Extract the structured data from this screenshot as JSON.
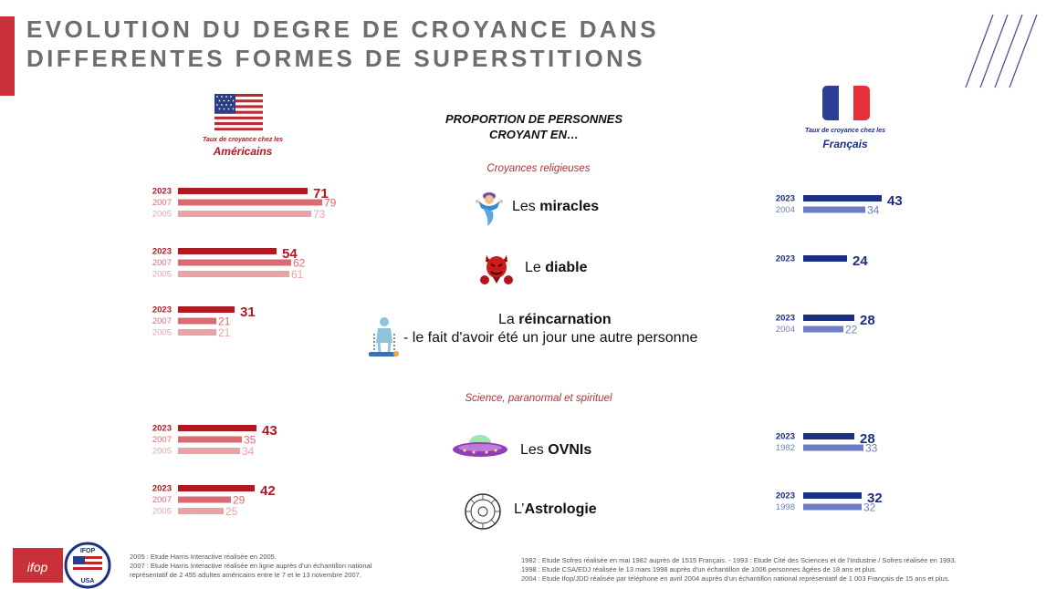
{
  "title_line1": "EVOLUTION DU DEGRE DE CROYANCE DANS",
  "title_line2": "DIFFERENTES FORMES DE SUPERSTITIONS",
  "us_caption_small": "Taux de croyance chez les",
  "us_caption_big": "Américains",
  "fr_caption_small": "Taux de croyance chez les",
  "fr_caption_big": "Français",
  "center_title_line1": "PROPORTION DE PERSONNES",
  "center_title_line2": "CROYANT EN…",
  "sections": {
    "religious": "Croyances religieuses",
    "science": "Science, paranormal et spirituel"
  },
  "items": [
    {
      "prefix": "Les ",
      "bold": "miracles",
      "suffix": "",
      "sub": "",
      "icon": "genie-icon"
    },
    {
      "prefix": "Le ",
      "bold": "diable",
      "suffix": "",
      "sub": "",
      "icon": "devil-icon"
    },
    {
      "prefix": "La ",
      "bold": "réincarnation",
      "suffix": "",
      "sub": "- le fait d'avoir été un jour une autre personne",
      "icon": "reincarnation-icon"
    },
    {
      "prefix": "Les ",
      "bold": "OVNIs",
      "suffix": "",
      "sub": "",
      "icon": "ufo-icon"
    },
    {
      "prefix": "L’",
      "bold": "Astrologie",
      "suffix": "",
      "sub": "",
      "icon": "zodiac-icon"
    }
  ],
  "chart_data": [
    {
      "type": "bar",
      "orientation": "horizontal",
      "title": "Taux de croyance chez les Américains",
      "unit": "%",
      "categories": [
        "Les miracles",
        "Le diable",
        "La réincarnation",
        "Les OVNIs",
        "L’Astrologie"
      ],
      "series": [
        {
          "name": "2023",
          "color": "#b01822",
          "values": [
            71,
            54,
            31,
            43,
            42
          ]
        },
        {
          "name": "2007",
          "color": "#d96b72",
          "values": [
            79,
            62,
            21,
            35,
            29
          ]
        },
        {
          "name": "2005",
          "color": "#e9a3a6",
          "values": [
            73,
            61,
            21,
            34,
            25
          ]
        }
      ]
    },
    {
      "type": "bar",
      "orientation": "horizontal",
      "title": "Taux de croyance chez les Français",
      "unit": "%",
      "categories": [
        "Les miracles",
        "Le diable",
        "La réincarnation",
        "Les OVNIs",
        "L’Astrologie"
      ],
      "groups": [
        [
          {
            "year": "2023",
            "value": 43
          },
          {
            "year": "2004",
            "value": 34
          }
        ],
        [
          {
            "year": "2023",
            "value": 24
          }
        ],
        [
          {
            "year": "2023",
            "value": 28
          },
          {
            "year": "2004",
            "value": 22
          }
        ],
        [
          {
            "year": "2023",
            "value": 28
          },
          {
            "year": "1982",
            "value": 33
          }
        ],
        [
          {
            "year": "2023",
            "value": 32
          },
          {
            "year": "1998",
            "value": 32
          }
        ]
      ],
      "colors": {
        "latest": "#1b2f85",
        "previous": "#6d7fc4"
      }
    }
  ],
  "footnotes_left": [
    "2005 : Etude Harris Interactive réalisée en 2005.",
    "2007 : Etude Harris Interactive réalisée en ligne auprès d'un échantillon national",
    "représentatif de 2 455 adultes américains entre le 7 et le 13 novembre 2007."
  ],
  "footnotes_right": [
    "1982 : Etude Sofres réalisée en mai 1982 auprès de 1515 Français. -    1993 : Etude Cité des Sciences et de l'Industrie / Sofres réalisée en 1993.",
    "1998 : Etude CSA/EDJ réalisée le 13 mars 1998 auprès d'un échantillon de 1006 personnes âgées de 18 ans et plus.",
    "2004 : Etude Ifop/JDD réalisée par téléphone en avril 2004 auprès d'un échantillon national représentatif de 1 003 Français de 15 ans et plus."
  ],
  "logos": {
    "ifop": "ifop",
    "ifop_usa_top": "IFOP",
    "ifop_usa_bottom": "USA"
  }
}
